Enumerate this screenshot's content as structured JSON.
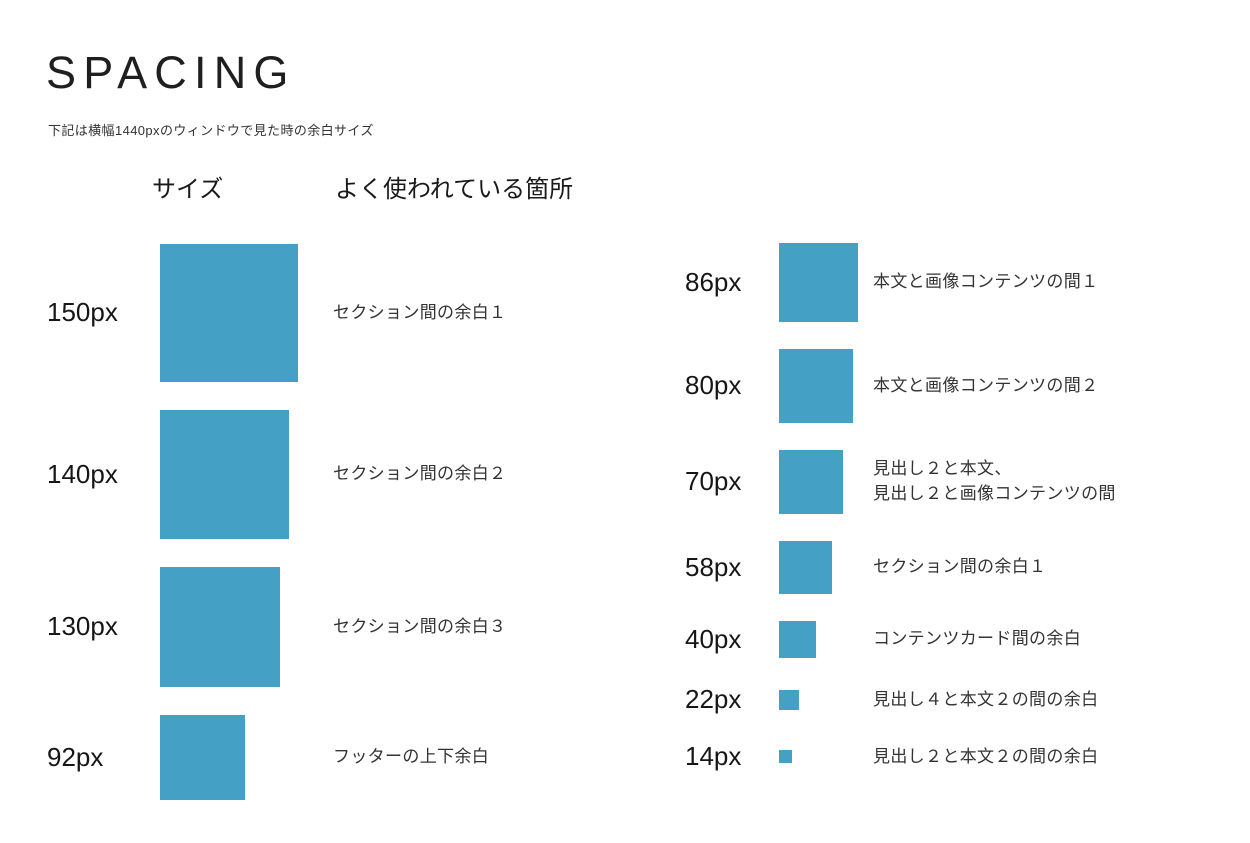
{
  "page": {
    "title": "SPACING",
    "subtitle": "下記は横幅1440pxのウィンドウで見た時の余白サイズ"
  },
  "table": {
    "headers": {
      "size": "サイズ",
      "usage": "よく使われている箇所"
    },
    "square_color": "#45A0C5",
    "left_rows": [
      {
        "size": "150px",
        "value": 150,
        "usage": "セクション間の余白１"
      },
      {
        "size": "140px",
        "value": 140,
        "usage": "セクション間の余白２"
      },
      {
        "size": "130px",
        "value": 130,
        "usage": "セクション間の余白３"
      },
      {
        "size": "92px",
        "value": 92,
        "usage": "フッターの上下余白"
      }
    ],
    "right_rows": [
      {
        "size": "86px",
        "value": 86,
        "usage": "本文と画像コンテンツの間１"
      },
      {
        "size": "80px",
        "value": 80,
        "usage": "本文と画像コンテンツの間２"
      },
      {
        "size": "70px",
        "value": 70,
        "usage": "見出し２と本文、\n見出し２と画像コンテンツの間"
      },
      {
        "size": "58px",
        "value": 58,
        "usage": "セクション間の余白１"
      },
      {
        "size": "40px",
        "value": 40,
        "usage": "コンテンツカード間の余白"
      },
      {
        "size": "22px",
        "value": 22,
        "usage": "見出し４と本文２の間の余白"
      },
      {
        "size": "14px",
        "value": 14,
        "usage": "見出し２と本文２の間の余白"
      }
    ]
  }
}
